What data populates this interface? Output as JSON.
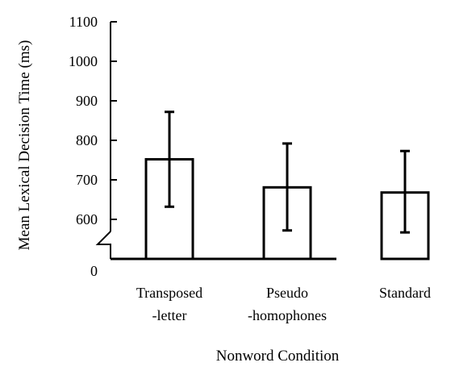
{
  "chart_data": {
    "type": "bar",
    "categories": [
      [
        "Transposed",
        "-letter"
      ],
      [
        "Pseudo",
        "-homophones"
      ],
      [
        "Standard"
      ]
    ],
    "values": [
      752,
      681,
      668
    ],
    "error_bars": [
      {
        "low": 632,
        "high": 872
      },
      {
        "low": 572,
        "high": 792
      },
      {
        "low": 567,
        "high": 773
      }
    ],
    "xlabel": "Nonword Condition",
    "ylabel": "Mean Lexical Decision Time (ms)",
    "ylim": [
      600,
      1100
    ],
    "y_ticks": [
      "1100",
      "1000",
      "900",
      "800",
      "700",
      "600"
    ],
    "y_break_label": "0",
    "axis_break": true,
    "grid": false,
    "colors": {
      "bar_fill": "#ffffff",
      "stroke": "#000000"
    }
  }
}
